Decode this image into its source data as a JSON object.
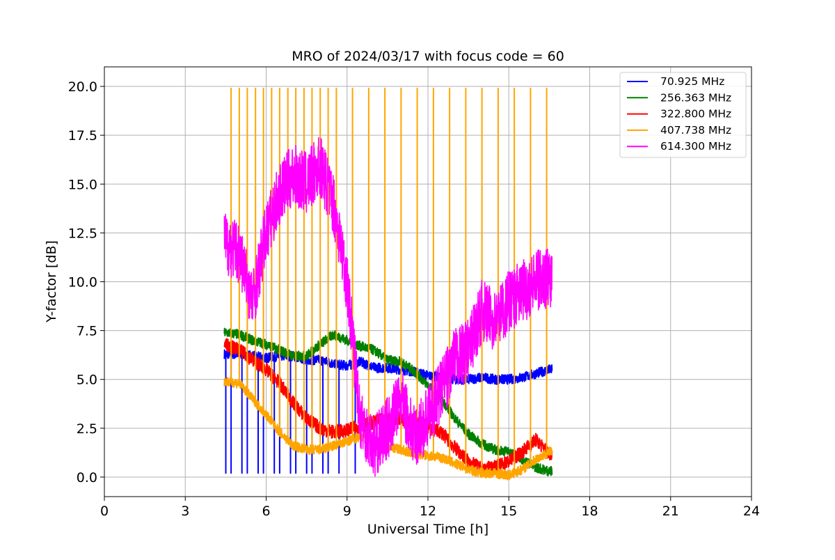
{
  "chart_data": {
    "type": "line",
    "title": "MRO of 2024/03/17 with focus code = 60",
    "xlabel": "Universal Time [h]",
    "ylabel": "Y-factor [dB]",
    "xlim": [
      0,
      24
    ],
    "ylim": [
      -1.0,
      21.0
    ],
    "xticks": [
      0,
      3,
      6,
      9,
      12,
      15,
      18,
      21,
      24
    ],
    "xtick_labels": [
      "0",
      "3",
      "6",
      "9",
      "12",
      "15",
      "18",
      "21",
      "24"
    ],
    "yticks": [
      0,
      2.5,
      5,
      7.5,
      10,
      12.5,
      15,
      17.5,
      20
    ],
    "ytick_labels": [
      "0.0",
      "2.5",
      "5.0",
      "7.5",
      "10.0",
      "12.5",
      "15.0",
      "17.5",
      "20.0"
    ],
    "grid": true,
    "legend_position": "top-right",
    "series": [
      {
        "name": " 70.925 MHz",
        "color": "#0000ff",
        "x": [
          4.5,
          5.0,
          5.5,
          6.0,
          6.5,
          7.0,
          7.5,
          8.0,
          8.5,
          9.0,
          9.5,
          10.0,
          10.5,
          11.0,
          11.5,
          12.0,
          12.5,
          13.0,
          13.5,
          14.0,
          14.5,
          15.0,
          15.5,
          16.0,
          16.5
        ],
        "y": [
          6.3,
          6.3,
          6.2,
          6.1,
          6.2,
          6.2,
          6.0,
          6.0,
          5.8,
          5.7,
          5.9,
          5.6,
          5.6,
          5.5,
          5.4,
          5.2,
          5.1,
          5.0,
          5.0,
          5.1,
          5.0,
          5.0,
          5.1,
          5.3,
          5.5
        ],
        "dip_low": 0.2,
        "dip_period_h": 0.2,
        "dip_range": [
          4.5,
          9.5
        ]
      },
      {
        "name": "256.363 MHz",
        "color": "#008000",
        "x": [
          4.5,
          5.0,
          5.5,
          6.0,
          6.5,
          7.0,
          7.5,
          8.0,
          8.5,
          9.0,
          9.5,
          10.0,
          10.5,
          11.0,
          11.5,
          12.0,
          12.5,
          13.0,
          13.5,
          14.0,
          14.5,
          15.0,
          15.5,
          16.0,
          16.5
        ],
        "y": [
          7.4,
          7.3,
          7.0,
          6.8,
          6.5,
          6.2,
          6.2,
          6.8,
          7.3,
          7.0,
          6.7,
          6.5,
          6.0,
          5.9,
          5.4,
          4.7,
          4.0,
          3.0,
          2.2,
          1.7,
          1.4,
          1.3,
          0.9,
          0.5,
          0.3
        ]
      },
      {
        "name": "322.800 MHz",
        "color": "#ff0000",
        "x": [
          4.5,
          5.0,
          5.5,
          6.0,
          6.5,
          7.0,
          7.5,
          8.0,
          8.5,
          9.0,
          9.5,
          10.0,
          10.5,
          11.0,
          11.5,
          12.0,
          12.5,
          13.0,
          13.5,
          14.0,
          14.5,
          15.0,
          15.5,
          16.0,
          16.5
        ],
        "y": [
          6.8,
          6.5,
          6.0,
          5.5,
          4.8,
          3.8,
          3.0,
          2.5,
          2.3,
          2.4,
          2.6,
          2.8,
          3.0,
          3.0,
          2.8,
          2.5,
          2.3,
          1.5,
          0.8,
          0.4,
          0.5,
          0.8,
          1.3,
          1.9,
          1.2
        ]
      },
      {
        "name": "407.738 MHz",
        "color": "#ffa500",
        "x": [
          4.5,
          5.0,
          5.5,
          6.0,
          6.5,
          7.0,
          7.5,
          8.0,
          8.5,
          9.0,
          9.5,
          10.0,
          10.5,
          11.0,
          11.5,
          12.0,
          12.5,
          13.0,
          13.5,
          14.0,
          14.5,
          15.0,
          15.5,
          16.0,
          16.5
        ],
        "y": [
          4.9,
          4.8,
          4.0,
          3.2,
          2.3,
          1.6,
          1.4,
          1.4,
          1.6,
          1.8,
          2.1,
          1.9,
          1.6,
          1.4,
          1.2,
          1.1,
          1.0,
          0.7,
          0.4,
          0.2,
          0.2,
          0.1,
          0.4,
          0.9,
          1.3
        ],
        "spike_high": 19.9,
        "spike_period_h": 0.3,
        "spike_range": [
          4.4,
          16.6
        ]
      },
      {
        "name": "614.300 MHz",
        "color": "#ff00ff",
        "x": [
          4.5,
          5.0,
          5.5,
          6.0,
          6.5,
          7.0,
          7.5,
          8.0,
          8.5,
          9.0,
          9.5,
          10.0,
          10.5,
          11.0,
          11.5,
          12.0,
          12.5,
          13.0,
          13.5,
          14.0,
          14.5,
          15.0,
          15.5,
          16.0,
          16.5
        ],
        "y": [
          12.0,
          11.5,
          9.0,
          12.5,
          14.5,
          15.5,
          15.0,
          16.0,
          14.0,
          10.0,
          3.0,
          1.5,
          2.5,
          4.0,
          2.0,
          3.0,
          4.5,
          6.0,
          6.5,
          8.5,
          8.0,
          9.0,
          9.5,
          10.0,
          10.3
        ]
      }
    ]
  }
}
